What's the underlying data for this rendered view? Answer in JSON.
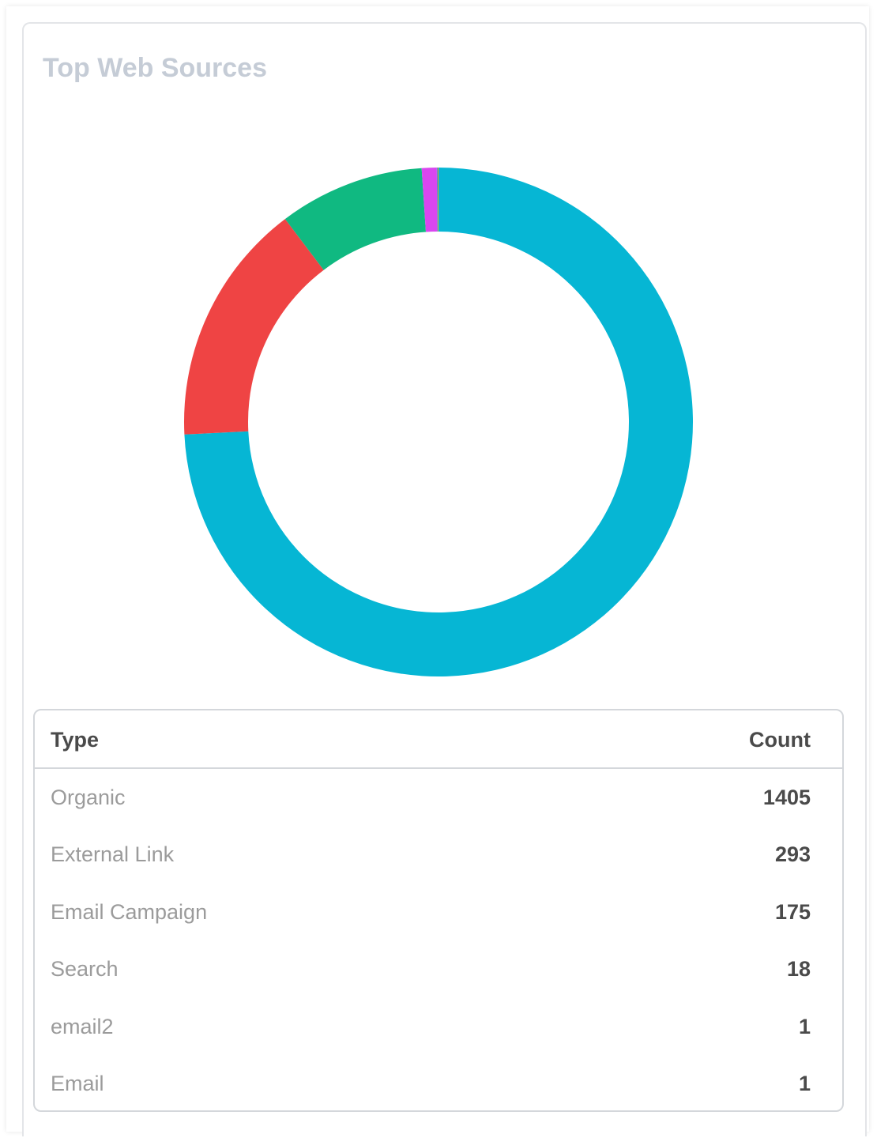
{
  "widget": {
    "title": "Top Web Sources"
  },
  "table": {
    "header_type": "Type",
    "header_count": "Count"
  },
  "chart_data": {
    "type": "pie",
    "variant": "donut",
    "title": "Top Web Sources",
    "categories": [
      "Organic",
      "External Link",
      "Email Campaign",
      "Search",
      "email2",
      "Email"
    ],
    "values": [
      1405,
      293,
      175,
      18,
      1,
      1
    ],
    "colors": [
      "#06b6d4",
      "#ef4444",
      "#10b981",
      "#d946ef",
      "#3b82f6",
      "#f59e0b"
    ],
    "legend": "none"
  }
}
